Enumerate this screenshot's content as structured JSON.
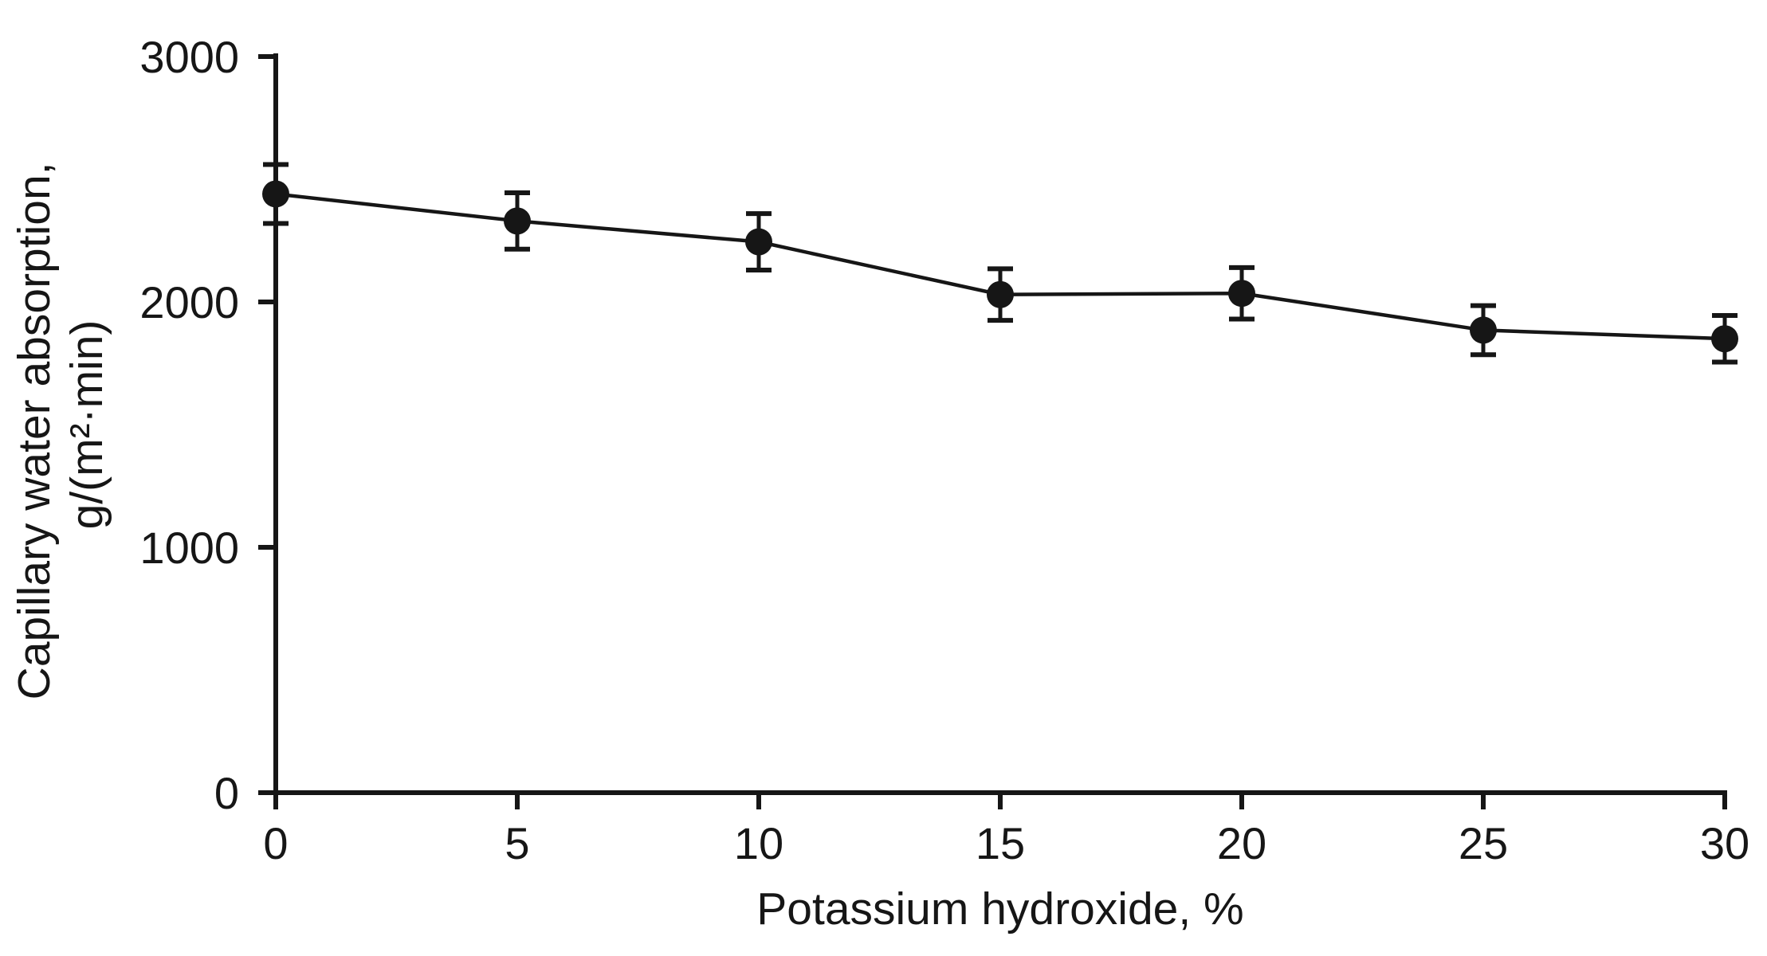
{
  "chart_data": {
    "type": "line",
    "title": "",
    "xlabel": "Potassium hydroxide, %",
    "ylabel_line1": "Capillary water absorption,",
    "ylabel_line2": "g/(m²·min)",
    "x": [
      0,
      5,
      10,
      15,
      20,
      25,
      30
    ],
    "series": [
      {
        "name": "Capillary water absorption",
        "values": [
          2440,
          2330,
          2245,
          2030,
          2035,
          1885,
          1850
        ],
        "errors": [
          120,
          115,
          115,
          105,
          105,
          100,
          95
        ]
      }
    ],
    "x_ticks": [
      "0",
      "5",
      "10",
      "15",
      "20",
      "25",
      "30"
    ],
    "y_ticks": [
      "0",
      "1000",
      "2000",
      "3000"
    ],
    "x_tick_values": [
      0,
      5,
      10,
      15,
      20,
      25,
      30
    ],
    "y_tick_values": [
      0,
      1000,
      2000,
      3000
    ],
    "xlim": [
      0,
      30
    ],
    "ylim": [
      0,
      3000
    ],
    "grid": false,
    "legend": "none",
    "marker": "filled-circle",
    "line_color": "#161616",
    "marker_color": "#161616",
    "background": "#ffffff"
  }
}
